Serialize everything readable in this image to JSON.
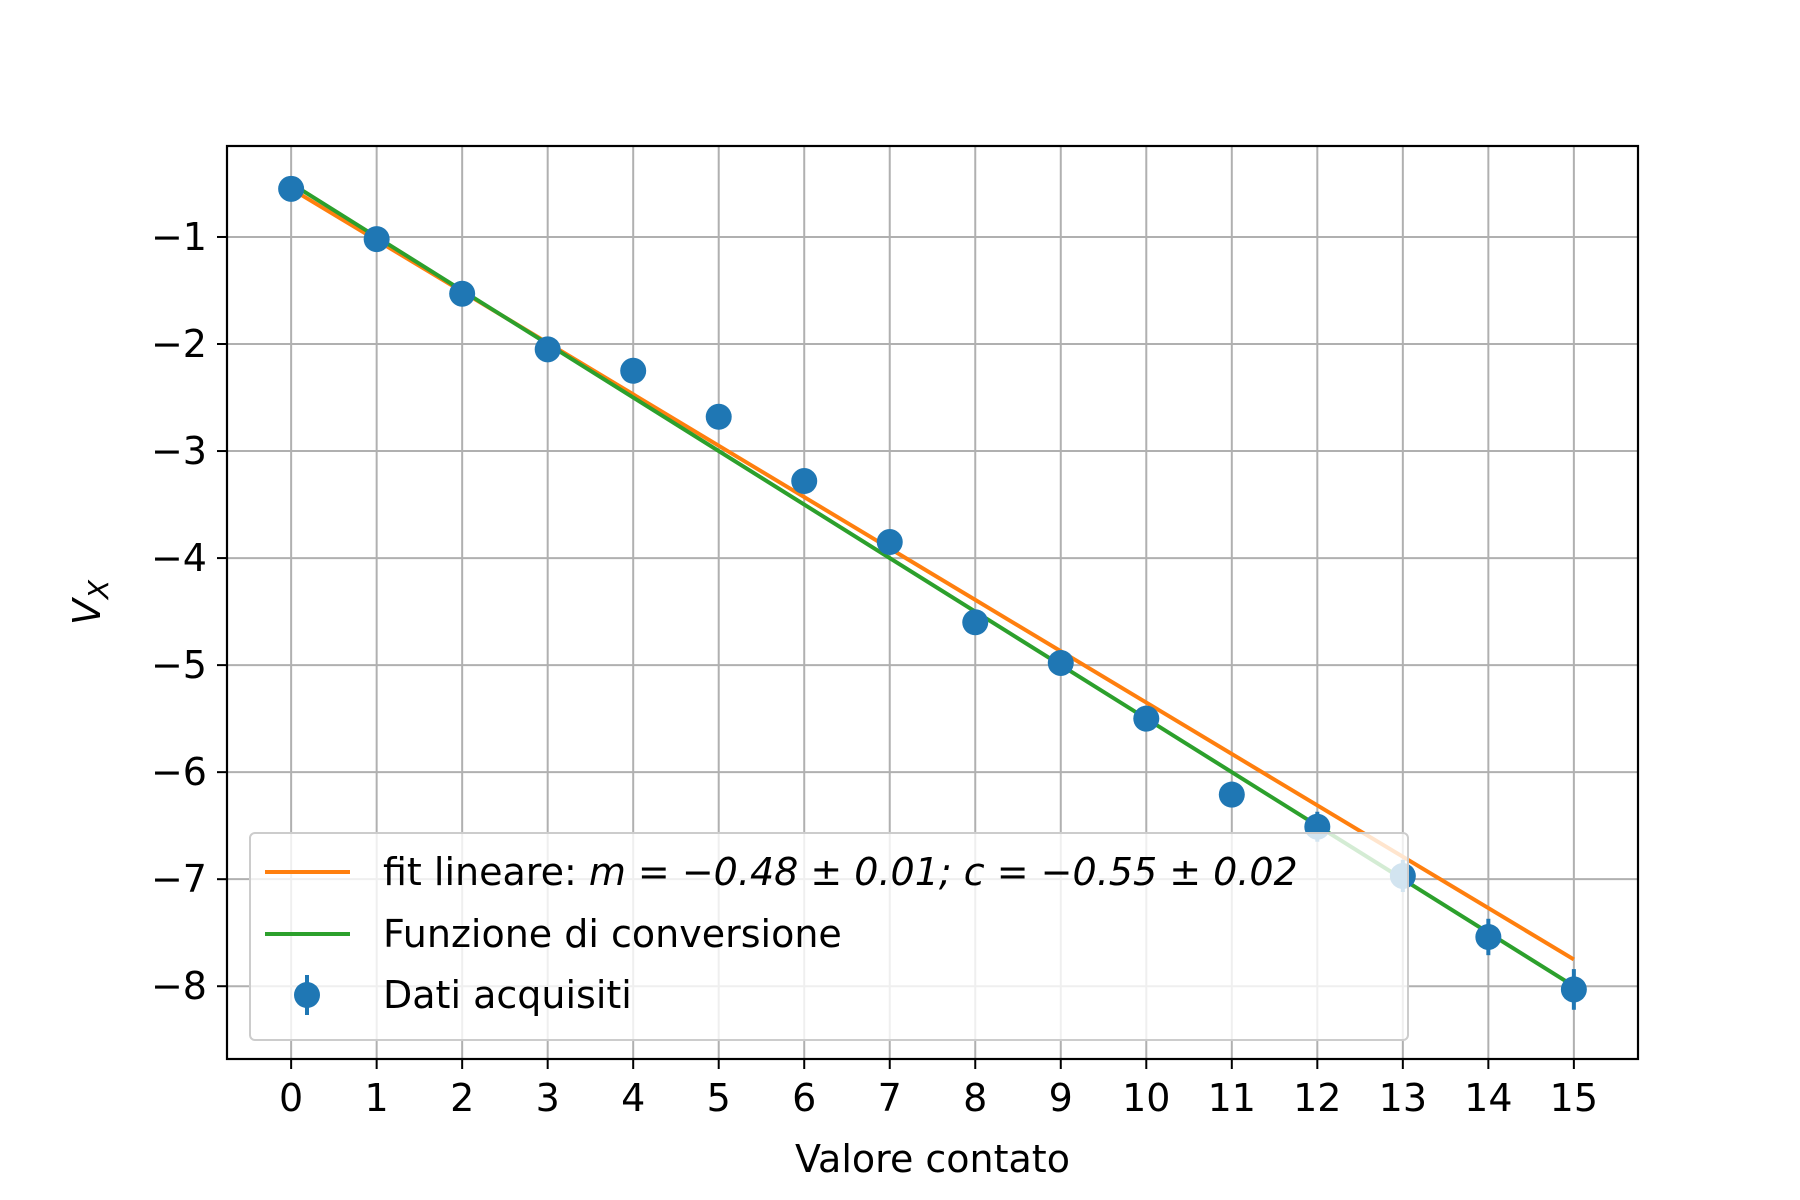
{
  "chart_data": {
    "type": "scatter",
    "xlabel": "Valore contato",
    "ylabel": {
      "base": "V",
      "sub": "X"
    },
    "xlim": [
      -0.75,
      15.75
    ],
    "ylim": [
      -8.68,
      -0.15
    ],
    "xticks": [
      0,
      1,
      2,
      3,
      4,
      5,
      6,
      7,
      8,
      9,
      10,
      11,
      12,
      13,
      14,
      15
    ],
    "yticks": [
      -1,
      -2,
      -3,
      -4,
      -5,
      -6,
      -7,
      -8
    ],
    "grid": true,
    "legend": {
      "placement": "lower-left",
      "entries": [
        {
          "key": "fit",
          "label_prefix": "fit lineare: ",
          "label_math": "m = −0.48 ± 0.01; c = −0.55 ± 0.02"
        },
        {
          "key": "conv",
          "label": "Funzione di conversione"
        },
        {
          "key": "data",
          "label": "Dati acquisiti"
        }
      ]
    },
    "series": [
      {
        "name": "Dati acquisiti",
        "kind": "errorbar",
        "color": "#1f77b4",
        "x": [
          0,
          1,
          2,
          3,
          4,
          5,
          6,
          7,
          8,
          9,
          10,
          11,
          12,
          13,
          14,
          15
        ],
        "y": [
          -0.55,
          -1.02,
          -1.53,
          -2.05,
          -2.25,
          -2.68,
          -3.28,
          -3.85,
          -4.6,
          -4.98,
          -5.5,
          -6.21,
          -6.51,
          -6.97,
          -7.54,
          -8.03
        ],
        "yerr": [
          0.04,
          0.04,
          0.05,
          0.05,
          0.06,
          0.07,
          0.08,
          0.09,
          0.1,
          0.1,
          0.11,
          0.12,
          0.14,
          0.15,
          0.17,
          0.19
        ]
      },
      {
        "name": "fit lineare",
        "kind": "line",
        "color": "#ff7f0e",
        "slope": -0.48,
        "intercept": -0.55,
        "x_range": [
          0,
          15
        ]
      },
      {
        "name": "Funzione di conversione",
        "kind": "line",
        "color": "#2ca02c",
        "slope": -0.5,
        "intercept": -0.5,
        "x_range": [
          0,
          15
        ]
      }
    ]
  }
}
